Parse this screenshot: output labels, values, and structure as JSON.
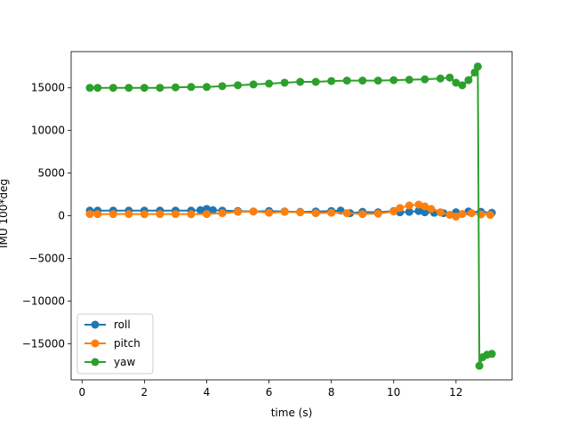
{
  "chart_data": {
    "type": "line",
    "xlabel": "time (s)",
    "ylabel": "IMU 100*deg",
    "xlim": [
      -0.35,
      13.8
    ],
    "ylim": [
      -19250,
      19250
    ],
    "xticks": [
      0,
      2,
      4,
      6,
      8,
      10,
      12
    ],
    "yticks": [
      -15000,
      -10000,
      -5000,
      0,
      5000,
      10000,
      15000
    ],
    "legend_position": "lower-left",
    "marker": "circle",
    "series": [
      {
        "name": "roll",
        "color": "#1f77b4",
        "x": [
          0.25,
          0.5,
          1,
          1.5,
          2,
          2.5,
          3,
          3.5,
          3.8,
          4,
          4.2,
          4.5,
          5,
          5.5,
          6,
          6.5,
          7,
          7.5,
          8,
          8.3,
          8.6,
          9,
          9.5,
          10,
          10.2,
          10.5,
          10.8,
          11,
          11.3,
          11.6,
          12,
          12.4,
          12.8,
          13.15
        ],
        "y": [
          600,
          600,
          600,
          600,
          600,
          600,
          600,
          600,
          650,
          800,
          650,
          600,
          550,
          500,
          550,
          500,
          450,
          500,
          550,
          600,
          300,
          450,
          400,
          550,
          400,
          450,
          550,
          400,
          350,
          300,
          400,
          500,
          450,
          350
        ]
      },
      {
        "name": "pitch",
        "color": "#ff7f0e",
        "x": [
          0.25,
          0.5,
          1,
          1.5,
          2,
          2.5,
          3,
          3.5,
          4,
          4.5,
          5,
          5.5,
          6,
          6.5,
          7,
          7.5,
          8,
          8.5,
          9,
          9.5,
          10,
          10.2,
          10.5,
          10.8,
          11,
          11.2,
          11.5,
          11.8,
          12,
          12.2,
          12.5,
          12.8,
          13.1
        ],
        "y": [
          200,
          180,
          190,
          200,
          180,
          190,
          200,
          180,
          200,
          300,
          450,
          500,
          350,
          450,
          400,
          300,
          350,
          300,
          200,
          250,
          500,
          900,
          1200,
          1300,
          1100,
          800,
          400,
          100,
          -100,
          200,
          300,
          150,
          100
        ]
      },
      {
        "name": "yaw",
        "color": "#2ca02c",
        "x": [
          0.25,
          0.5,
          1,
          1.5,
          2,
          2.5,
          3,
          3.5,
          4,
          4.5,
          5,
          5.5,
          6,
          6.5,
          7,
          7.5,
          8,
          8.5,
          9,
          9.5,
          10,
          10.5,
          11,
          11.5,
          11.8,
          12,
          12.2,
          12.4,
          12.6,
          12.7,
          12.75,
          12.85,
          13.0,
          13.15
        ],
        "y": [
          15000,
          15000,
          15000,
          15000,
          15000,
          15000,
          15050,
          15100,
          15100,
          15200,
          15300,
          15400,
          15500,
          15600,
          15700,
          15700,
          15800,
          15850,
          15850,
          15850,
          15900,
          15950,
          16000,
          16100,
          16200,
          15600,
          15300,
          15900,
          16800,
          17500,
          -17600,
          -16600,
          -16300,
          -16200
        ]
      }
    ]
  }
}
